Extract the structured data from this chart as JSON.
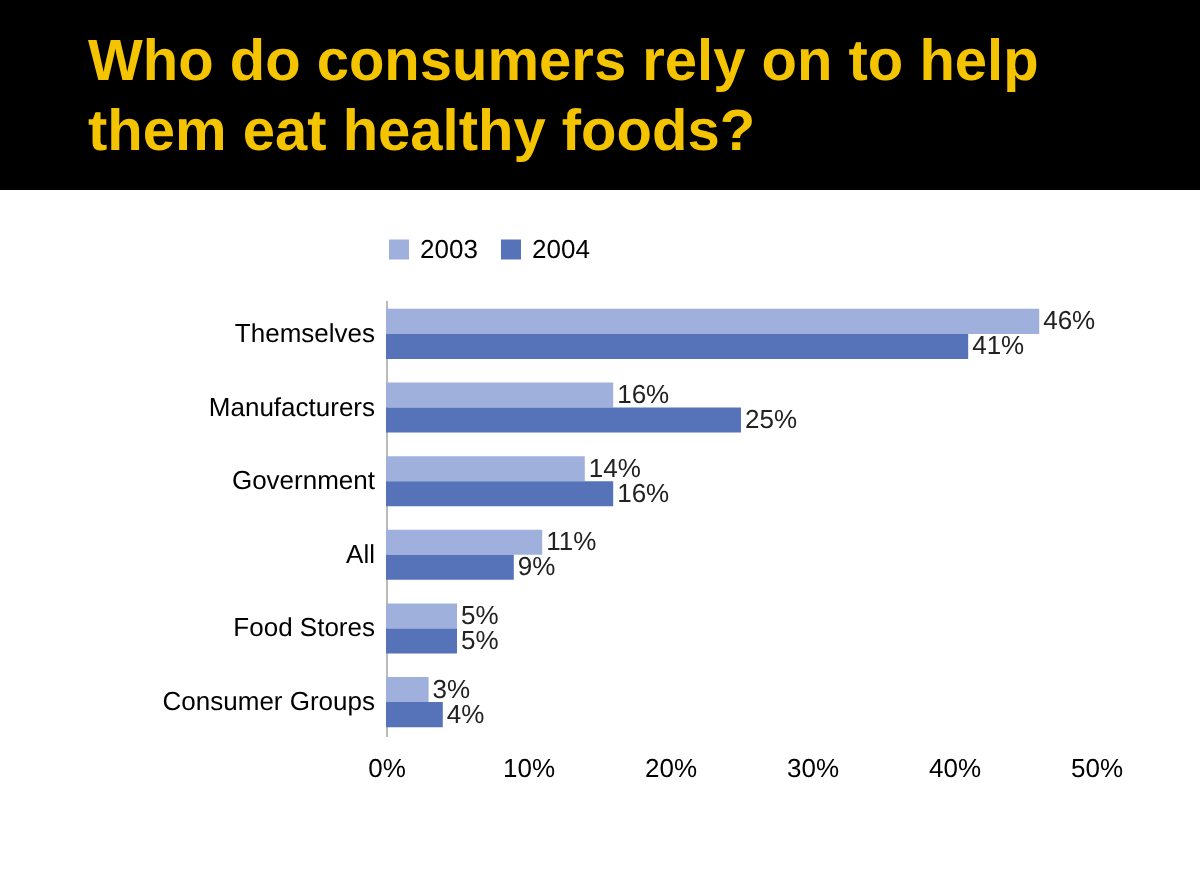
{
  "chart_data": {
    "type": "bar",
    "orientation": "horizontal",
    "title": "Who do consumers rely on to help them eat healthy foods?",
    "categories": [
      "Themselves",
      "Manufacturers",
      "Government",
      "All",
      "Food Stores",
      "Consumer Groups"
    ],
    "series": [
      {
        "name": "2003",
        "color": "#9fb0dc",
        "values": [
          46,
          16,
          14,
          11,
          5,
          3
        ],
        "value_labels": [
          "46%",
          "16%",
          "14%",
          "11%",
          "5%",
          "3%"
        ]
      },
      {
        "name": "2004",
        "color": "#5672b8",
        "values": [
          41,
          25,
          16,
          9,
          5,
          4
        ],
        "value_labels": [
          "41%",
          "25%",
          "16%",
          "9%",
          "5%",
          "4%"
        ]
      }
    ],
    "xlim": [
      0,
      50
    ],
    "xticks": [
      {
        "value": 0,
        "label": "0%"
      },
      {
        "value": 10,
        "label": "10%"
      },
      {
        "value": 20,
        "label": "20%"
      },
      {
        "value": 30,
        "label": "30%"
      },
      {
        "value": 40,
        "label": "40%"
      },
      {
        "value": 50,
        "label": "50%"
      }
    ],
    "legend": "top"
  }
}
